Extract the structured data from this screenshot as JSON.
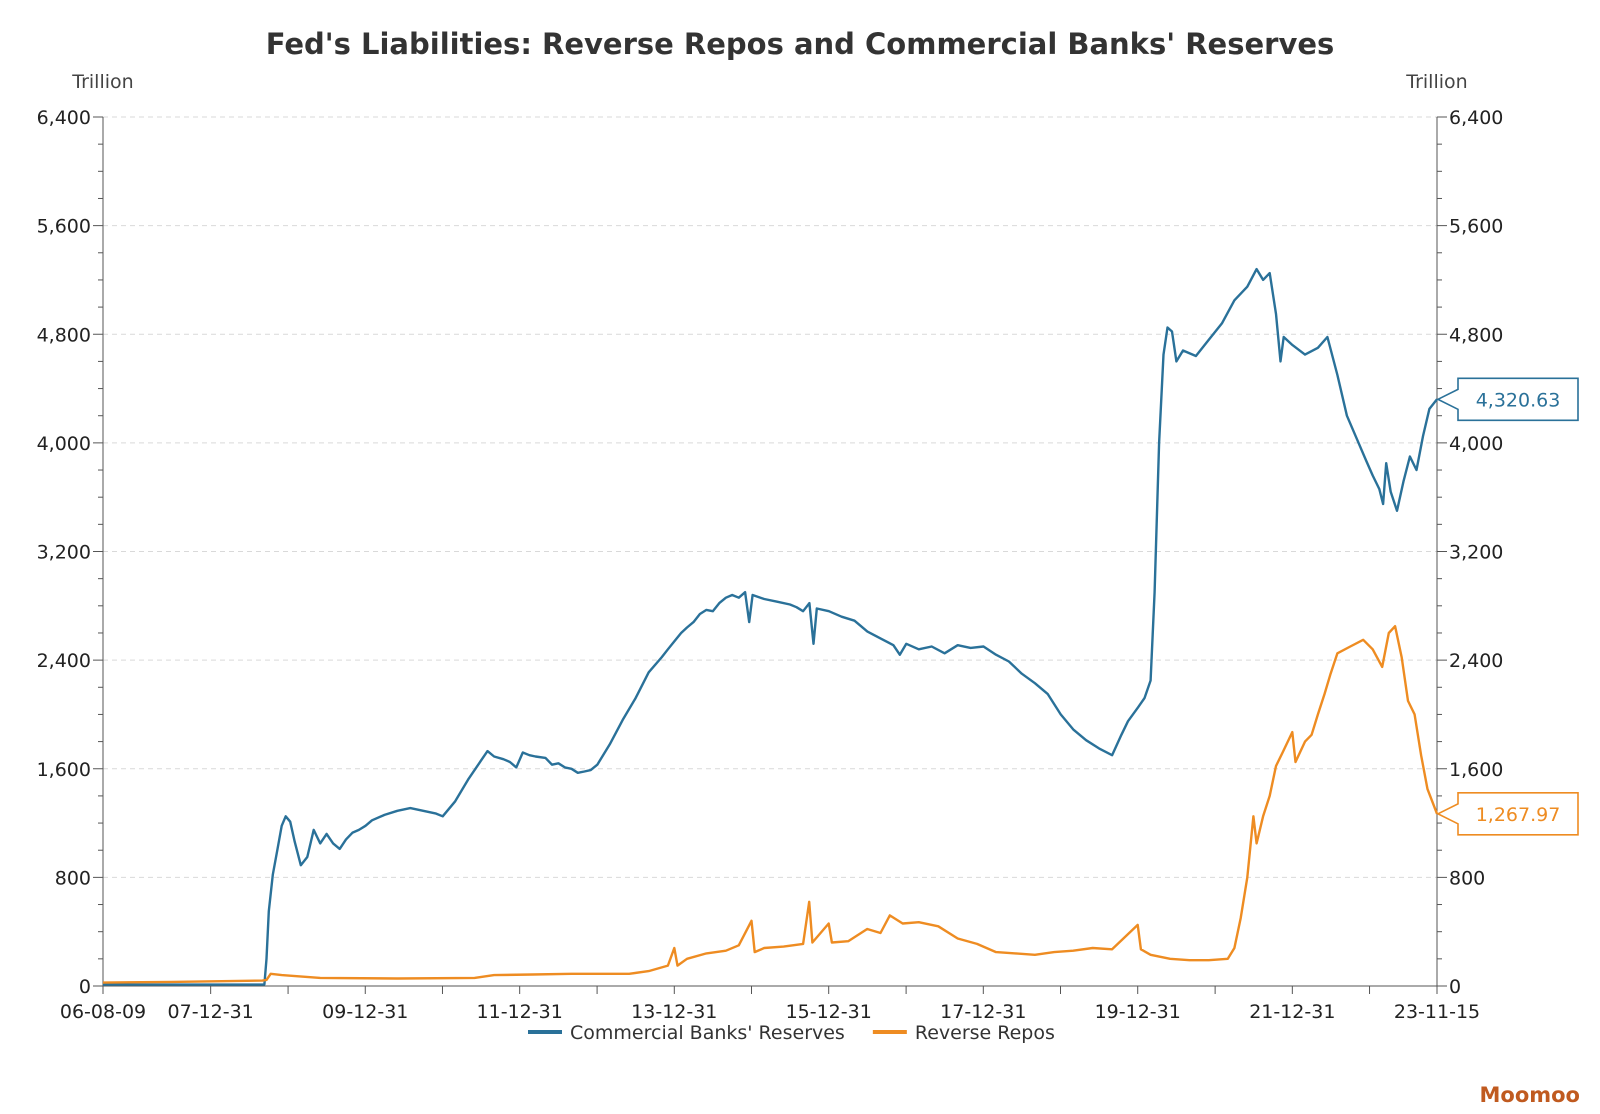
{
  "chart_data": {
    "type": "line",
    "title": "Fed's Liabilities: Reverse Repos and Commercial Banks' Reserves",
    "y_unit_left": "Trillion",
    "y_unit_right": "Trillion",
    "ylim": [
      0,
      6400
    ],
    "yticks": [
      {
        "value": 0,
        "label": "0"
      },
      {
        "value": 800,
        "label": "800"
      },
      {
        "value": 1600,
        "label": "1,600"
      },
      {
        "value": 2400,
        "label": "2,400"
      },
      {
        "value": 3200,
        "label": "3,200"
      },
      {
        "value": 4000,
        "label": "4,000"
      },
      {
        "value": 4800,
        "label": "4,800"
      },
      {
        "value": 5600,
        "label": "5,600"
      },
      {
        "value": 6400,
        "label": "6,400"
      }
    ],
    "xlim": [
      "2006-08-09",
      "2023-11-15"
    ],
    "xticks": [
      {
        "date": "2006-08-09",
        "label": "06-08-09"
      },
      {
        "date": "2007-12-31",
        "label": "07-12-31"
      },
      {
        "date": "2009-12-31",
        "label": "09-12-31"
      },
      {
        "date": "2011-12-31",
        "label": "11-12-31"
      },
      {
        "date": "2013-12-31",
        "label": "13-12-31"
      },
      {
        "date": "2015-12-31",
        "label": "15-12-31"
      },
      {
        "date": "2017-12-31",
        "label": "17-12-31"
      },
      {
        "date": "2019-12-31",
        "label": "19-12-31"
      },
      {
        "date": "2021-12-31",
        "label": "21-12-31"
      },
      {
        "date": "2023-11-15",
        "label": "23-11-15"
      }
    ],
    "grid": true,
    "legend_position": "bottom-center",
    "series": [
      {
        "name": "Commercial Banks' Reserves",
        "color": "#2a7199",
        "last_label": "4,320.63",
        "points": [
          [
            "2006-08-09",
            10
          ],
          [
            "2007-06-30",
            10
          ],
          [
            "2008-08-31",
            10
          ],
          [
            "2008-09-10",
            12
          ],
          [
            "2008-09-20",
            200
          ],
          [
            "2008-10-01",
            550
          ],
          [
            "2008-10-20",
            820
          ],
          [
            "2008-11-10",
            1000
          ],
          [
            "2008-12-01",
            1180
          ],
          [
            "2008-12-20",
            1250
          ],
          [
            "2009-01-10",
            1210
          ],
          [
            "2009-02-01",
            1060
          ],
          [
            "2009-03-01",
            890
          ],
          [
            "2009-04-01",
            950
          ],
          [
            "2009-05-01",
            1150
          ],
          [
            "2009-06-01",
            1050
          ],
          [
            "2009-07-01",
            1120
          ],
          [
            "2009-08-01",
            1050
          ],
          [
            "2009-09-01",
            1010
          ],
          [
            "2009-10-01",
            1080
          ],
          [
            "2009-11-01",
            1130
          ],
          [
            "2009-12-01",
            1150
          ],
          [
            "2010-01-01",
            1180
          ],
          [
            "2010-02-01",
            1220
          ],
          [
            "2010-04-01",
            1260
          ],
          [
            "2010-06-01",
            1290
          ],
          [
            "2010-08-01",
            1310
          ],
          [
            "2010-10-01",
            1290
          ],
          [
            "2010-12-01",
            1270
          ],
          [
            "2011-01-01",
            1250
          ],
          [
            "2011-03-01",
            1360
          ],
          [
            "2011-05-01",
            1520
          ],
          [
            "2011-07-01",
            1660
          ],
          [
            "2011-08-01",
            1730
          ],
          [
            "2011-09-01",
            1690
          ],
          [
            "2011-10-15",
            1670
          ],
          [
            "2011-11-15",
            1650
          ],
          [
            "2011-12-15",
            1610
          ],
          [
            "2012-01-15",
            1720
          ],
          [
            "2012-02-15",
            1700
          ],
          [
            "2012-03-15",
            1690
          ],
          [
            "2012-05-01",
            1680
          ],
          [
            "2012-06-01",
            1630
          ],
          [
            "2012-07-01",
            1640
          ],
          [
            "2012-08-01",
            1610
          ],
          [
            "2012-09-01",
            1600
          ],
          [
            "2012-10-01",
            1570
          ],
          [
            "2012-11-01",
            1580
          ],
          [
            "2012-12-01",
            1590
          ],
          [
            "2013-01-01",
            1630
          ],
          [
            "2013-03-01",
            1780
          ],
          [
            "2013-05-01",
            1960
          ],
          [
            "2013-07-01",
            2120
          ],
          [
            "2013-09-01",
            2310
          ],
          [
            "2013-11-01",
            2420
          ],
          [
            "2013-12-01",
            2480
          ],
          [
            "2014-01-01",
            2540
          ],
          [
            "2014-02-01",
            2600
          ],
          [
            "2014-03-01",
            2640
          ],
          [
            "2014-04-01",
            2680
          ],
          [
            "2014-05-01",
            2740
          ],
          [
            "2014-06-01",
            2770
          ],
          [
            "2014-07-01",
            2760
          ],
          [
            "2014-08-01",
            2820
          ],
          [
            "2014-09-01",
            2860
          ],
          [
            "2014-10-01",
            2880
          ],
          [
            "2014-11-01",
            2860
          ],
          [
            "2014-12-01",
            2900
          ],
          [
            "2014-12-20",
            2680
          ],
          [
            "2015-01-05",
            2880
          ],
          [
            "2015-03-01",
            2850
          ],
          [
            "2015-05-01",
            2830
          ],
          [
            "2015-07-01",
            2810
          ],
          [
            "2015-08-01",
            2790
          ],
          [
            "2015-09-01",
            2760
          ],
          [
            "2015-10-01",
            2820
          ],
          [
            "2015-10-20",
            2520
          ],
          [
            "2015-11-05",
            2780
          ],
          [
            "2016-01-01",
            2760
          ],
          [
            "2016-03-01",
            2720
          ],
          [
            "2016-05-01",
            2690
          ],
          [
            "2016-07-01",
            2610
          ],
          [
            "2016-09-01",
            2560
          ],
          [
            "2016-11-01",
            2510
          ],
          [
            "2016-12-01",
            2440
          ],
          [
            "2017-01-01",
            2520
          ],
          [
            "2017-03-01",
            2480
          ],
          [
            "2017-05-01",
            2500
          ],
          [
            "2017-07-01",
            2450
          ],
          [
            "2017-09-01",
            2510
          ],
          [
            "2017-11-01",
            2490
          ],
          [
            "2018-01-01",
            2500
          ],
          [
            "2018-03-01",
            2440
          ],
          [
            "2018-05-01",
            2390
          ],
          [
            "2018-07-01",
            2300
          ],
          [
            "2018-09-01",
            2230
          ],
          [
            "2018-11-01",
            2150
          ],
          [
            "2019-01-01",
            2000
          ],
          [
            "2019-03-01",
            1890
          ],
          [
            "2019-05-01",
            1810
          ],
          [
            "2019-07-01",
            1750
          ],
          [
            "2019-09-01",
            1700
          ],
          [
            "2019-10-15",
            1850
          ],
          [
            "2019-11-15",
            1950
          ],
          [
            "2020-01-01",
            2050
          ],
          [
            "2020-02-01",
            2120
          ],
          [
            "2020-03-01",
            2250
          ],
          [
            "2020-03-20",
            2900
          ],
          [
            "2020-04-10",
            4000
          ],
          [
            "2020-05-01",
            4650
          ],
          [
            "2020-05-20",
            4850
          ],
          [
            "2020-06-10",
            4820
          ],
          [
            "2020-07-01",
            4600
          ],
          [
            "2020-08-01",
            4680
          ],
          [
            "2020-10-01",
            4640
          ],
          [
            "2020-12-01",
            4760
          ],
          [
            "2021-02-01",
            4880
          ],
          [
            "2021-04-01",
            5050
          ],
          [
            "2021-06-01",
            5150
          ],
          [
            "2021-07-15",
            5280
          ],
          [
            "2021-08-15",
            5200
          ],
          [
            "2021-09-15",
            5250
          ],
          [
            "2021-10-15",
            4950
          ],
          [
            "2021-11-05",
            4600
          ],
          [
            "2021-11-20",
            4780
          ],
          [
            "2022-01-01",
            4720
          ],
          [
            "2022-03-01",
            4650
          ],
          [
            "2022-05-01",
            4700
          ],
          [
            "2022-06-15",
            4780
          ],
          [
            "2022-08-01",
            4500
          ],
          [
            "2022-09-15",
            4200
          ],
          [
            "2022-11-01",
            4030
          ],
          [
            "2022-12-15",
            3870
          ],
          [
            "2023-01-15",
            3760
          ],
          [
            "2023-02-15",
            3660
          ],
          [
            "2023-03-05",
            3550
          ],
          [
            "2023-03-20",
            3850
          ],
          [
            "2023-04-10",
            3640
          ],
          [
            "2023-05-10",
            3500
          ],
          [
            "2023-06-10",
            3720
          ],
          [
            "2023-07-10",
            3900
          ],
          [
            "2023-08-10",
            3800
          ],
          [
            "2023-09-10",
            4050
          ],
          [
            "2023-10-10",
            4250
          ],
          [
            "2023-11-15",
            4320.63
          ]
        ]
      },
      {
        "name": "Reverse Repos",
        "color": "#ee8c22",
        "last_label": "1,267.97",
        "points": [
          [
            "2006-08-09",
            25
          ],
          [
            "2007-06-30",
            30
          ],
          [
            "2008-08-31",
            40
          ],
          [
            "2008-09-20",
            45
          ],
          [
            "2008-10-10",
            90
          ],
          [
            "2008-12-01",
            80
          ],
          [
            "2009-06-01",
            60
          ],
          [
            "2010-06-01",
            55
          ],
          [
            "2011-06-01",
            60
          ],
          [
            "2011-09-01",
            80
          ],
          [
            "2012-03-01",
            85
          ],
          [
            "2012-09-01",
            90
          ],
          [
            "2013-06-01",
            90
          ],
          [
            "2013-09-01",
            110
          ],
          [
            "2013-12-01",
            150
          ],
          [
            "2013-12-31",
            280
          ],
          [
            "2014-01-15",
            150
          ],
          [
            "2014-03-01",
            200
          ],
          [
            "2014-06-01",
            240
          ],
          [
            "2014-09-01",
            260
          ],
          [
            "2014-11-01",
            300
          ],
          [
            "2014-12-31",
            480
          ],
          [
            "2015-01-15",
            250
          ],
          [
            "2015-03-01",
            280
          ],
          [
            "2015-06-01",
            290
          ],
          [
            "2015-09-01",
            310
          ],
          [
            "2015-09-30",
            620
          ],
          [
            "2015-10-15",
            320
          ],
          [
            "2015-12-31",
            460
          ],
          [
            "2016-01-15",
            320
          ],
          [
            "2016-04-01",
            330
          ],
          [
            "2016-06-30",
            420
          ],
          [
            "2016-09-01",
            390
          ],
          [
            "2016-10-15",
            520
          ],
          [
            "2016-12-15",
            460
          ],
          [
            "2017-03-01",
            470
          ],
          [
            "2017-06-01",
            440
          ],
          [
            "2017-09-01",
            350
          ],
          [
            "2017-12-01",
            310
          ],
          [
            "2018-03-01",
            250
          ],
          [
            "2018-06-01",
            240
          ],
          [
            "2018-09-01",
            230
          ],
          [
            "2018-12-01",
            250
          ],
          [
            "2019-03-01",
            260
          ],
          [
            "2019-06-01",
            280
          ],
          [
            "2019-09-01",
            270
          ],
          [
            "2019-12-31",
            450
          ],
          [
            "2020-01-15",
            270
          ],
          [
            "2020-03-01",
            230
          ],
          [
            "2020-06-01",
            200
          ],
          [
            "2020-09-01",
            190
          ],
          [
            "2020-12-01",
            190
          ],
          [
            "2021-03-01",
            200
          ],
          [
            "2021-04-01",
            280
          ],
          [
            "2021-05-01",
            500
          ],
          [
            "2021-06-01",
            800
          ],
          [
            "2021-06-30",
            1250
          ],
          [
            "2021-07-15",
            1050
          ],
          [
            "2021-08-15",
            1250
          ],
          [
            "2021-09-15",
            1400
          ],
          [
            "2021-10-15",
            1620
          ],
          [
            "2021-11-15",
            1720
          ],
          [
            "2021-12-31",
            1870
          ],
          [
            "2022-01-15",
            1650
          ],
          [
            "2022-03-01",
            1800
          ],
          [
            "2022-04-01",
            1850
          ],
          [
            "2022-05-01",
            2000
          ],
          [
            "2022-06-01",
            2150
          ],
          [
            "2022-06-30",
            2300
          ],
          [
            "2022-08-01",
            2450
          ],
          [
            "2022-10-01",
            2500
          ],
          [
            "2022-12-01",
            2550
          ],
          [
            "2023-01-15",
            2480
          ],
          [
            "2023-03-01",
            2350
          ],
          [
            "2023-04-01",
            2600
          ],
          [
            "2023-05-01",
            2650
          ],
          [
            "2023-06-01",
            2420
          ],
          [
            "2023-07-01",
            2100
          ],
          [
            "2023-08-01",
            2000
          ],
          [
            "2023-09-01",
            1700
          ],
          [
            "2023-10-01",
            1450
          ],
          [
            "2023-11-15",
            1267.97
          ]
        ]
      }
    ]
  },
  "brand": {
    "label": "Moomoo",
    "color": "#c05a1f"
  }
}
